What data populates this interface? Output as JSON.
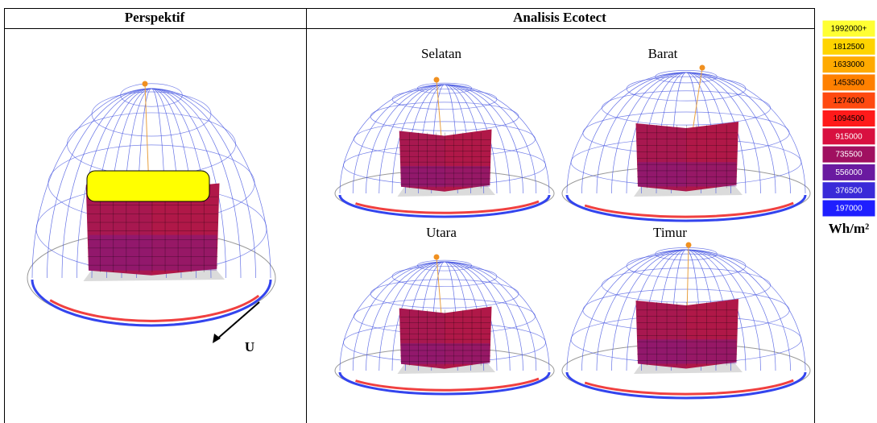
{
  "table": {
    "headers": [
      "Perspektif",
      "Analisis Ecotect"
    ]
  },
  "perspective": {
    "north_label": "U"
  },
  "views": [
    "Selatan",
    "Barat",
    "Utara",
    "Timur"
  ],
  "legend": {
    "items": [
      {
        "label": "1992000+",
        "color": "#ffff33"
      },
      {
        "label": "1812500",
        "color": "#ffd400"
      },
      {
        "label": "1633000",
        "color": "#ffaa00"
      },
      {
        "label": "1453500",
        "color": "#ff8000"
      },
      {
        "label": "1274000",
        "color": "#ff4a10"
      },
      {
        "label": "1094500",
        "color": "#ff1a1a"
      },
      {
        "label": "915000",
        "color": "#d81040"
      },
      {
        "label": "735500",
        "color": "#a01060"
      },
      {
        "label": "556000",
        "color": "#6a1aa0"
      },
      {
        "label": "376500",
        "color": "#3a2ad8"
      },
      {
        "label": "197000",
        "color": "#1f1fff"
      }
    ],
    "unit": "Wh/m²"
  }
}
